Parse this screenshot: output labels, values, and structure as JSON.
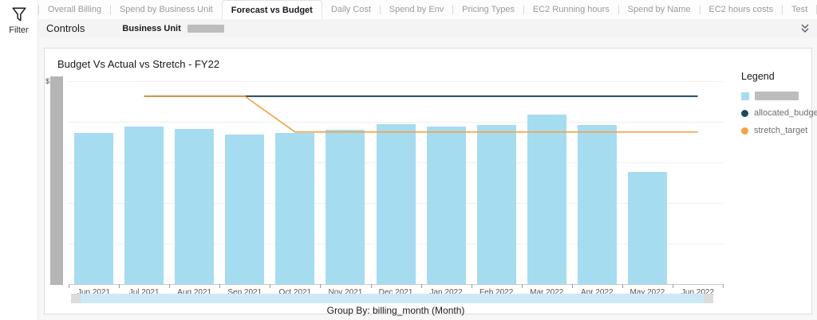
{
  "filter_rail": {
    "label": "Filter"
  },
  "tabs": {
    "items": [
      {
        "label": "Overall Billing",
        "active": false
      },
      {
        "label": "Spend by Business Unit",
        "active": false
      },
      {
        "label": "Forecast vs Budget",
        "active": true
      },
      {
        "label": "Daily Cost",
        "active": false
      },
      {
        "label": "Spend by Env",
        "active": false
      },
      {
        "label": "Pricing Types",
        "active": false
      },
      {
        "label": "EC2 Running hours",
        "active": false
      },
      {
        "label": "Spend by Name",
        "active": false
      },
      {
        "label": "EC2 hours costs",
        "active": false
      },
      {
        "label": "Test",
        "active": false
      }
    ]
  },
  "controls": {
    "title": "Controls",
    "filter_label": "Business Unit",
    "filter_value_redacted": true
  },
  "chart_data": {
    "type": "bar",
    "title": "Budget Vs Actual vs Stretch - FY22",
    "xlabel": "Group By: billing_month (Month)",
    "y_axis": {
      "prefix": "$",
      "tick_labels_redacted": true,
      "note": "values are relative units; 100 = top gridline (labels redacted in screenshot)"
    },
    "ylim": [
      0,
      100
    ],
    "grid": true,
    "legend_position": "right",
    "categories": [
      "Jun 2021",
      "Jul 2021",
      "Aug 2021",
      "Sep 2021",
      "Oct 2021",
      "Nov 2021",
      "Dec 2021",
      "Jan 2022",
      "Feb 2022",
      "Mar 2022",
      "Apr 2022",
      "May 2022",
      "Jun 2022"
    ],
    "series": [
      {
        "name": "",
        "label_redacted": true,
        "render": "bar",
        "color": "#a6dcef",
        "values": [
          74.4,
          77.8,
          76.5,
          73.9,
          74.5,
          75.9,
          78.7,
          77.8,
          78.5,
          83.4,
          78.5,
          55.2,
          null
        ]
      },
      {
        "name": "allocated_budget",
        "render": "line",
        "color": "#1d4a61",
        "values": [
          null,
          92.6,
          92.6,
          92.6,
          92.6,
          92.6,
          92.6,
          92.6,
          92.6,
          92.6,
          92.6,
          92.6,
          92.6
        ]
      },
      {
        "name": "stretch_target",
        "render": "line",
        "color": "#f5a147",
        "values": [
          null,
          92.6,
          92.6,
          92.6,
          75.0,
          75.0,
          75.0,
          75.0,
          75.0,
          75.0,
          75.0,
          75.0,
          75.0
        ]
      }
    ]
  },
  "legend": {
    "title": "Legend",
    "items": [
      {
        "label": "",
        "redacted": true,
        "color": "#a6dcef",
        "shape": "square"
      },
      {
        "label": "allocated_budget",
        "redacted": false,
        "color": "#1d4a61",
        "shape": "circle"
      },
      {
        "label": "stretch_target",
        "redacted": false,
        "color": "#f5a147",
        "shape": "circle"
      }
    ]
  }
}
